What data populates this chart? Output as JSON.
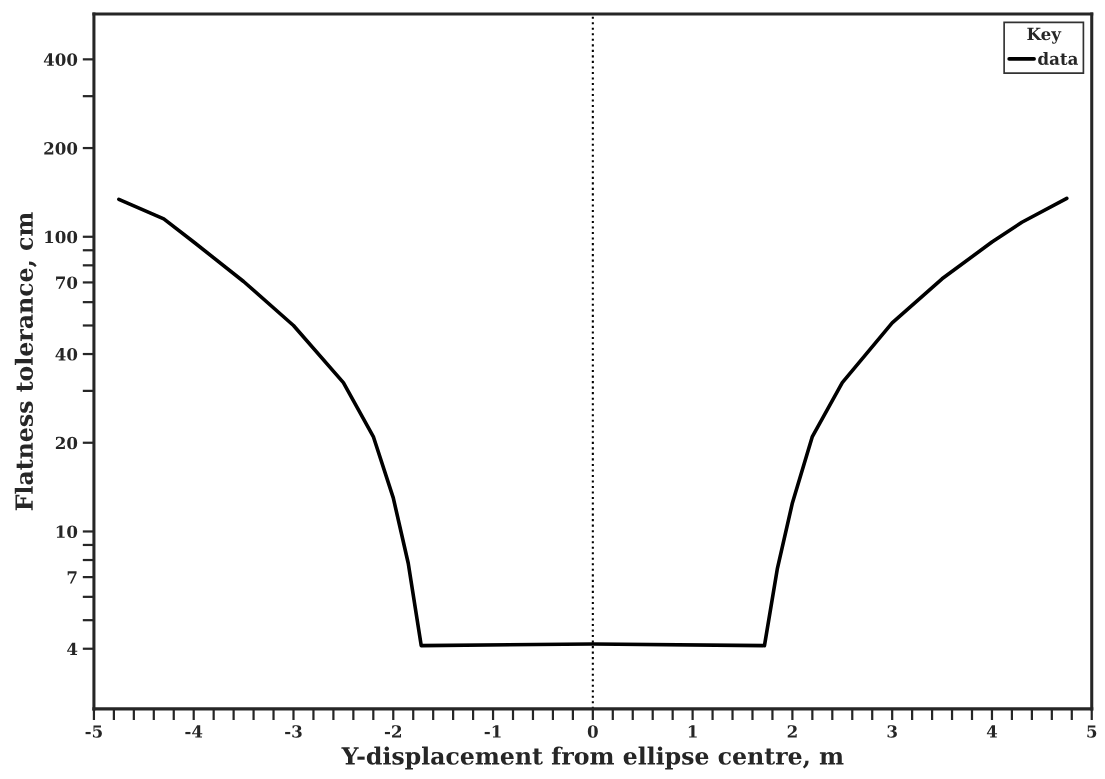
{
  "chart_data": {
    "type": "line",
    "xlabel": "Y-displacement from ellipse centre, m",
    "ylabel": "Flatness tolerance, cm",
    "legend_title": "Key",
    "legend": "top right",
    "grid": false,
    "log": "y",
    "line_style": "solid",
    "marker": "none",
    "series": [
      {
        "name": "data",
        "color": "#000000",
        "x": [
          -4.75,
          -4.3,
          -4.0,
          -3.5,
          -3.0,
          -2.5,
          -2.2,
          -2.0,
          -1.85,
          -1.72,
          0.0,
          1.72,
          1.85,
          2.0,
          2.2,
          2.5,
          3.0,
          3.5,
          4.0,
          4.3,
          4.75
        ],
        "values": [
          134,
          115,
          96,
          70.5,
          50,
          32,
          21,
          13,
          7.8,
          4.1,
          4.15,
          4.1,
          7.5,
          12.5,
          21,
          32,
          51,
          72,
          96,
          112,
          135
        ]
      }
    ],
    "ref_lines": [
      {
        "axis": "x",
        "value": 0,
        "line_style": "dotted",
        "color": "#000000"
      }
    ],
    "xlim": [
      -5,
      5
    ],
    "ylim": [
      2.5,
      570
    ],
    "xticks": [
      -5,
      {
        "value": -4.8,
        "label": null
      },
      {
        "value": -4.6,
        "label": null
      },
      {
        "value": -4.4,
        "label": null
      },
      {
        "value": -4.2,
        "label": null
      },
      -4,
      {
        "value": -3.8,
        "label": null
      },
      {
        "value": -3.6,
        "label": null
      },
      {
        "value": -3.4,
        "label": null
      },
      {
        "value": -3.2,
        "label": null
      },
      -3,
      {
        "value": -2.8,
        "label": null
      },
      {
        "value": -2.6,
        "label": null
      },
      {
        "value": -2.4,
        "label": null
      },
      {
        "value": -2.2,
        "label": null
      },
      -2,
      {
        "value": -1.8,
        "label": null
      },
      {
        "value": -1.6,
        "label": null
      },
      {
        "value": -1.4,
        "label": null
      },
      {
        "value": -1.2,
        "label": null
      },
      -1,
      {
        "value": -0.8,
        "label": null
      },
      {
        "value": -0.6,
        "label": null
      },
      {
        "value": -0.4,
        "label": null
      },
      {
        "value": -0.2,
        "label": null
      },
      0,
      {
        "value": 0.2,
        "label": null
      },
      {
        "value": 0.4,
        "label": null
      },
      {
        "value": 0.6,
        "label": null
      },
      {
        "value": 0.8,
        "label": null
      },
      1,
      {
        "value": 1.2,
        "label": null
      },
      {
        "value": 1.4,
        "label": null
      },
      {
        "value": 1.6,
        "label": null
      },
      {
        "value": 1.8,
        "label": null
      },
      2,
      {
        "value": 2.2,
        "label": null
      },
      {
        "value": 2.4,
        "label": null
      },
      {
        "value": 2.6,
        "label": null
      },
      {
        "value": 2.8,
        "label": null
      },
      3,
      {
        "value": 3.2,
        "label": null
      },
      {
        "value": 3.4,
        "label": null
      },
      {
        "value": 3.6,
        "label": null
      },
      {
        "value": 3.8,
        "label": null
      },
      4,
      {
        "value": 4.2,
        "label": null
      },
      {
        "value": 4.4,
        "label": null
      },
      {
        "value": 4.6,
        "label": null
      },
      {
        "value": 4.8,
        "label": null
      },
      5
    ],
    "yticks": [
      4,
      {
        "value": 5,
        "label": null
      },
      {
        "value": 6,
        "label": null
      },
      7,
      {
        "value": 8,
        "label": null
      },
      {
        "value": 9,
        "label": null
      },
      10,
      20,
      {
        "value": 30,
        "label": null
      },
      40,
      {
        "value": 50,
        "label": null
      },
      {
        "value": 60,
        "label": null
      },
      70,
      {
        "value": 80,
        "label": null
      },
      {
        "value": 90,
        "label": null
      },
      100,
      200,
      {
        "value": 300,
        "label": null
      },
      400
    ]
  }
}
